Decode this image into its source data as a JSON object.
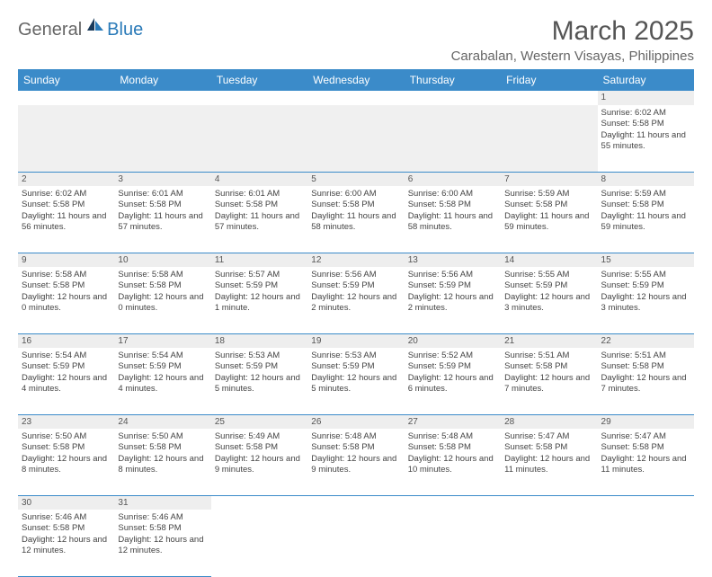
{
  "logo": {
    "general": "General",
    "blue": "Blue"
  },
  "title": "March 2025",
  "location": "Carabalan, Western Visayas, Philippines",
  "headers": [
    "Sunday",
    "Monday",
    "Tuesday",
    "Wednesday",
    "Thursday",
    "Friday",
    "Saturday"
  ],
  "colors": {
    "header_bg": "#3b8bc9",
    "header_text": "#ffffff",
    "daynum_bg": "#eeeeee",
    "border": "#3b8bc9",
    "text": "#444444",
    "title_text": "#555555"
  },
  "weeks": [
    {
      "nums": [
        "",
        "",
        "",
        "",
        "",
        "",
        "1"
      ],
      "cells": [
        null,
        null,
        null,
        null,
        null,
        null,
        {
          "sunrise": "6:02 AM",
          "sunset": "5:58 PM",
          "daylight": "11 hours and 55 minutes."
        }
      ]
    },
    {
      "nums": [
        "2",
        "3",
        "4",
        "5",
        "6",
        "7",
        "8"
      ],
      "cells": [
        {
          "sunrise": "6:02 AM",
          "sunset": "5:58 PM",
          "daylight": "11 hours and 56 minutes."
        },
        {
          "sunrise": "6:01 AM",
          "sunset": "5:58 PM",
          "daylight": "11 hours and 57 minutes."
        },
        {
          "sunrise": "6:01 AM",
          "sunset": "5:58 PM",
          "daylight": "11 hours and 57 minutes."
        },
        {
          "sunrise": "6:00 AM",
          "sunset": "5:58 PM",
          "daylight": "11 hours and 58 minutes."
        },
        {
          "sunrise": "6:00 AM",
          "sunset": "5:58 PM",
          "daylight": "11 hours and 58 minutes."
        },
        {
          "sunrise": "5:59 AM",
          "sunset": "5:58 PM",
          "daylight": "11 hours and 59 minutes."
        },
        {
          "sunrise": "5:59 AM",
          "sunset": "5:58 PM",
          "daylight": "11 hours and 59 minutes."
        }
      ]
    },
    {
      "nums": [
        "9",
        "10",
        "11",
        "12",
        "13",
        "14",
        "15"
      ],
      "cells": [
        {
          "sunrise": "5:58 AM",
          "sunset": "5:58 PM",
          "daylight": "12 hours and 0 minutes."
        },
        {
          "sunrise": "5:58 AM",
          "sunset": "5:58 PM",
          "daylight": "12 hours and 0 minutes."
        },
        {
          "sunrise": "5:57 AM",
          "sunset": "5:59 PM",
          "daylight": "12 hours and 1 minute."
        },
        {
          "sunrise": "5:56 AM",
          "sunset": "5:59 PM",
          "daylight": "12 hours and 2 minutes."
        },
        {
          "sunrise": "5:56 AM",
          "sunset": "5:59 PM",
          "daylight": "12 hours and 2 minutes."
        },
        {
          "sunrise": "5:55 AM",
          "sunset": "5:59 PM",
          "daylight": "12 hours and 3 minutes."
        },
        {
          "sunrise": "5:55 AM",
          "sunset": "5:59 PM",
          "daylight": "12 hours and 3 minutes."
        }
      ]
    },
    {
      "nums": [
        "16",
        "17",
        "18",
        "19",
        "20",
        "21",
        "22"
      ],
      "cells": [
        {
          "sunrise": "5:54 AM",
          "sunset": "5:59 PM",
          "daylight": "12 hours and 4 minutes."
        },
        {
          "sunrise": "5:54 AM",
          "sunset": "5:59 PM",
          "daylight": "12 hours and 4 minutes."
        },
        {
          "sunrise": "5:53 AM",
          "sunset": "5:59 PM",
          "daylight": "12 hours and 5 minutes."
        },
        {
          "sunrise": "5:53 AM",
          "sunset": "5:59 PM",
          "daylight": "12 hours and 5 minutes."
        },
        {
          "sunrise": "5:52 AM",
          "sunset": "5:59 PM",
          "daylight": "12 hours and 6 minutes."
        },
        {
          "sunrise": "5:51 AM",
          "sunset": "5:58 PM",
          "daylight": "12 hours and 7 minutes."
        },
        {
          "sunrise": "5:51 AM",
          "sunset": "5:58 PM",
          "daylight": "12 hours and 7 minutes."
        }
      ]
    },
    {
      "nums": [
        "23",
        "24",
        "25",
        "26",
        "27",
        "28",
        "29"
      ],
      "cells": [
        {
          "sunrise": "5:50 AM",
          "sunset": "5:58 PM",
          "daylight": "12 hours and 8 minutes."
        },
        {
          "sunrise": "5:50 AM",
          "sunset": "5:58 PM",
          "daylight": "12 hours and 8 minutes."
        },
        {
          "sunrise": "5:49 AM",
          "sunset": "5:58 PM",
          "daylight": "12 hours and 9 minutes."
        },
        {
          "sunrise": "5:48 AM",
          "sunset": "5:58 PM",
          "daylight": "12 hours and 9 minutes."
        },
        {
          "sunrise": "5:48 AM",
          "sunset": "5:58 PM",
          "daylight": "12 hours and 10 minutes."
        },
        {
          "sunrise": "5:47 AM",
          "sunset": "5:58 PM",
          "daylight": "12 hours and 11 minutes."
        },
        {
          "sunrise": "5:47 AM",
          "sunset": "5:58 PM",
          "daylight": "12 hours and 11 minutes."
        }
      ]
    },
    {
      "nums": [
        "30",
        "31",
        "",
        "",
        "",
        "",
        ""
      ],
      "cells": [
        {
          "sunrise": "5:46 AM",
          "sunset": "5:58 PM",
          "daylight": "12 hours and 12 minutes."
        },
        {
          "sunrise": "5:46 AM",
          "sunset": "5:58 PM",
          "daylight": "12 hours and 12 minutes."
        },
        null,
        null,
        null,
        null,
        null
      ]
    }
  ],
  "labels": {
    "sunrise": "Sunrise: ",
    "sunset": "Sunset: ",
    "daylight": "Daylight: "
  }
}
